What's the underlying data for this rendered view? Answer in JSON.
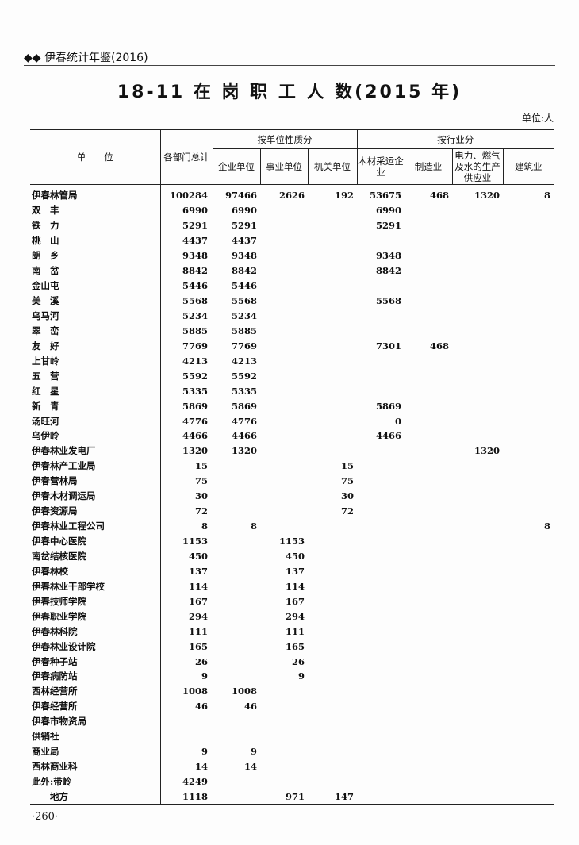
{
  "header": {
    "book": "◆◆ 伊春统计年鉴(2016)"
  },
  "title": "18-11 在 岗 职 工 人 数(2015 年)",
  "unit": "单位:人",
  "columns": {
    "unit": "单　　位",
    "total": "各部门总计",
    "group1": "按单位性质分",
    "group2": "按行业分",
    "sub": [
      "企业单位",
      "事业单位",
      "机关单位",
      "木材采运企业",
      "制造业",
      "电力、燃气及水的生产供应业",
      "建筑业"
    ]
  },
  "rows": [
    [
      "伊春林管局",
      "100284",
      "97466",
      "2626",
      "192",
      "53675",
      "468",
      "1320",
      "8"
    ],
    [
      "双　丰",
      "6990",
      "6990",
      "",
      "",
      "6990",
      "",
      "",
      ""
    ],
    [
      "铁　力",
      "5291",
      "5291",
      "",
      "",
      "5291",
      "",
      "",
      ""
    ],
    [
      "桃　山",
      "4437",
      "4437",
      "",
      "",
      "",
      "",
      "",
      ""
    ],
    [
      "朗　乡",
      "9348",
      "9348",
      "",
      "",
      "9348",
      "",
      "",
      ""
    ],
    [
      "南　岔",
      "8842",
      "8842",
      "",
      "",
      "8842",
      "",
      "",
      ""
    ],
    [
      "金山屯",
      "5446",
      "5446",
      "",
      "",
      "",
      "",
      "",
      ""
    ],
    [
      "美　溪",
      "5568",
      "5568",
      "",
      "",
      "5568",
      "",
      "",
      ""
    ],
    [
      "乌马河",
      "5234",
      "5234",
      "",
      "",
      "",
      "",
      "",
      ""
    ],
    [
      "翠　峦",
      "5885",
      "5885",
      "",
      "",
      "",
      "",
      "",
      ""
    ],
    [
      "友　好",
      "7769",
      "7769",
      "",
      "",
      "7301",
      "468",
      "",
      ""
    ],
    [
      "上甘岭",
      "4213",
      "4213",
      "",
      "",
      "",
      "",
      "",
      ""
    ],
    [
      "五　营",
      "5592",
      "5592",
      "",
      "",
      "",
      "",
      "",
      ""
    ],
    [
      "红　星",
      "5335",
      "5335",
      "",
      "",
      "",
      "",
      "",
      ""
    ],
    [
      "新　青",
      "5869",
      "5869",
      "",
      "",
      "5869",
      "",
      "",
      ""
    ],
    [
      "汤旺河",
      "4776",
      "4776",
      "",
      "",
      "0",
      "",
      "",
      ""
    ],
    [
      "乌伊岭",
      "4466",
      "4466",
      "",
      "",
      "4466",
      "",
      "",
      ""
    ],
    [
      "伊春林业发电厂",
      "1320",
      "1320",
      "",
      "",
      "",
      "",
      "1320",
      ""
    ],
    [
      "伊春林产工业局",
      "15",
      "",
      "",
      "15",
      "",
      "",
      "",
      ""
    ],
    [
      "伊春营林局",
      "75",
      "",
      "",
      "75",
      "",
      "",
      "",
      ""
    ],
    [
      "伊春木材调运局",
      "30",
      "",
      "",
      "30",
      "",
      "",
      "",
      ""
    ],
    [
      "伊春资源局",
      "72",
      "",
      "",
      "72",
      "",
      "",
      "",
      ""
    ],
    [
      "伊春林业工程公司",
      "8",
      "8",
      "",
      "",
      "",
      "",
      "",
      "8"
    ],
    [
      "伊春中心医院",
      "1153",
      "",
      "1153",
      "",
      "",
      "",
      "",
      ""
    ],
    [
      "南岔结核医院",
      "450",
      "",
      "450",
      "",
      "",
      "",
      "",
      ""
    ],
    [
      "伊春林校",
      "137",
      "",
      "137",
      "",
      "",
      "",
      "",
      ""
    ],
    [
      "伊春林业干部学校",
      "114",
      "",
      "114",
      "",
      "",
      "",
      "",
      ""
    ],
    [
      "伊春技师学院",
      "167",
      "",
      "167",
      "",
      "",
      "",
      "",
      ""
    ],
    [
      "伊春职业学院",
      "294",
      "",
      "294",
      "",
      "",
      "",
      "",
      ""
    ],
    [
      "伊春林科院",
      "111",
      "",
      "111",
      "",
      "",
      "",
      "",
      ""
    ],
    [
      "伊春林业设计院",
      "165",
      "",
      "165",
      "",
      "",
      "",
      "",
      ""
    ],
    [
      "伊春种子站",
      "26",
      "",
      "26",
      "",
      "",
      "",
      "",
      ""
    ],
    [
      "伊春病防站",
      "9",
      "",
      "9",
      "",
      "",
      "",
      "",
      ""
    ],
    [
      "西林经营所",
      "1008",
      "1008",
      "",
      "",
      "",
      "",
      "",
      ""
    ],
    [
      "伊春经营所",
      "46",
      "46",
      "",
      "",
      "",
      "",
      "",
      ""
    ],
    [
      "伊春市物资局",
      "",
      "",
      "",
      "",
      "",
      "",
      "",
      ""
    ],
    [
      "供销社",
      "",
      "",
      "",
      "",
      "",
      "",
      "",
      ""
    ],
    [
      "商业局",
      "9",
      "9",
      "",
      "",
      "",
      "",
      "",
      ""
    ],
    [
      "西林商业科",
      "14",
      "14",
      "",
      "",
      "",
      "",
      "",
      ""
    ],
    [
      "此外:带岭",
      "4249",
      "",
      "",
      "",
      "",
      "",
      "",
      ""
    ],
    [
      "　　地方",
      "1118",
      "",
      "971",
      "147",
      "",
      "",
      "",
      ""
    ]
  ],
  "page_number": "·260·"
}
